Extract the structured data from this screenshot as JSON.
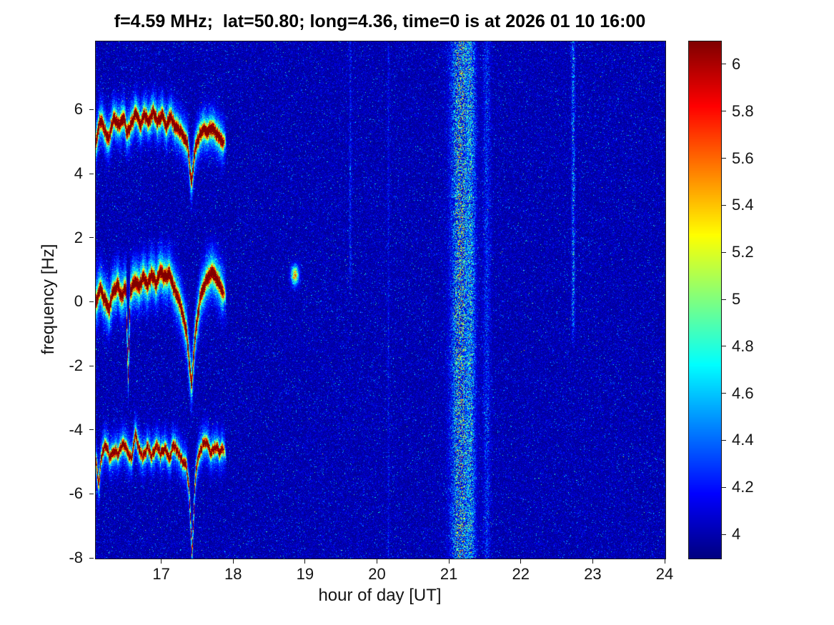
{
  "title": "f=4.59 MHz;  lat=50.80; long=4.36, time=0 is at 2026 01 10 16:00",
  "chart_data": {
    "type": "heatmap",
    "title": "f=4.59 MHz;  lat=50.80; long=4.36, time=0 is at 2026 01 10 16:00",
    "xlabel": "hour of day [UT]",
    "ylabel": "frequency [Hz]",
    "colormap": "jet",
    "grid": false,
    "x_range": [
      16.08,
      24
    ],
    "y_range": [
      -8,
      8.15
    ],
    "color_range": [
      3.9,
      6.1
    ],
    "x_ticks": [
      17,
      18,
      19,
      20,
      21,
      22,
      23,
      24
    ],
    "y_ticks": [
      -8,
      -6,
      -4,
      -2,
      0,
      2,
      4,
      6
    ],
    "colorbar_ticks": [
      {
        "value": 4,
        "label": "4"
      },
      {
        "value": 4.2,
        "label": "4.2"
      },
      {
        "value": 4.4,
        "label": "4.4"
      },
      {
        "value": 4.6,
        "label": "4.6"
      },
      {
        "value": 4.8,
        "label": "4.8"
      },
      {
        "value": 5,
        "label": "5"
      },
      {
        "value": 5.2,
        "label": "5.2"
      },
      {
        "value": 5.4,
        "label": "5.4"
      },
      {
        "value": 5.6,
        "label": "5.6"
      },
      {
        "value": 5.8,
        "label": "5.8"
      },
      {
        "value": 6,
        "label": "6"
      }
    ],
    "background_noise": {
      "base": 3.93,
      "exp_scale": 0.09,
      "speckle_prob": 0.02,
      "speckle_max": 0.9
    },
    "doppler_traces": [
      {
        "name": "upper-trace",
        "amp": 2.3,
        "core_sigma": 0.13,
        "halo_amp": 0.75,
        "halo_sigma": 0.42,
        "points": [
          [
            16.08,
            5.0
          ],
          [
            16.14,
            5.7
          ],
          [
            16.2,
            5.4
          ],
          [
            16.26,
            5.1
          ],
          [
            16.33,
            5.8
          ],
          [
            16.4,
            5.5
          ],
          [
            16.46,
            5.8
          ],
          [
            16.52,
            5.3
          ],
          [
            16.58,
            5.6
          ],
          [
            16.64,
            5.9
          ],
          [
            16.7,
            5.5
          ],
          [
            16.76,
            5.9
          ],
          [
            16.82,
            5.6
          ],
          [
            16.88,
            6.0
          ],
          [
            16.94,
            5.6
          ],
          [
            17.0,
            5.9
          ],
          [
            17.06,
            5.5
          ],
          [
            17.12,
            5.8
          ],
          [
            17.18,
            5.5
          ],
          [
            17.24,
            5.4
          ],
          [
            17.3,
            5.2
          ],
          [
            17.36,
            4.9
          ],
          [
            17.41,
            3.7
          ],
          [
            17.46,
            4.8
          ],
          [
            17.52,
            5.2
          ],
          [
            17.58,
            5.45
          ],
          [
            17.64,
            5.35
          ],
          [
            17.7,
            5.45
          ],
          [
            17.76,
            5.25
          ],
          [
            17.82,
            5.1
          ],
          [
            17.9,
            4.95
          ]
        ]
      },
      {
        "name": "center-trace",
        "amp": 2.3,
        "core_sigma": 0.14,
        "halo_amp": 0.8,
        "halo_sigma": 0.5,
        "points": [
          [
            16.08,
            0.0
          ],
          [
            16.14,
            0.45
          ],
          [
            16.2,
            0.1
          ],
          [
            16.26,
            -0.25
          ],
          [
            16.32,
            0.3
          ],
          [
            16.38,
            0.55
          ],
          [
            16.44,
            0.2
          ],
          [
            16.5,
            0.5
          ],
          [
            16.53,
            -2.3
          ],
          [
            16.56,
            0.3
          ],
          [
            16.62,
            0.7
          ],
          [
            16.68,
            0.45
          ],
          [
            16.74,
            0.8
          ],
          [
            16.8,
            0.5
          ],
          [
            16.86,
            0.9
          ],
          [
            16.92,
            0.6
          ],
          [
            16.98,
            1.0
          ],
          [
            17.04,
            0.75
          ],
          [
            17.1,
            0.9
          ],
          [
            17.16,
            0.5
          ],
          [
            17.22,
            0.2
          ],
          [
            17.28,
            -0.3
          ],
          [
            17.34,
            -0.9
          ],
          [
            17.41,
            -2.6
          ],
          [
            17.47,
            -0.9
          ],
          [
            17.53,
            0.1
          ],
          [
            17.59,
            0.55
          ],
          [
            17.65,
            0.8
          ],
          [
            17.71,
            0.95
          ],
          [
            17.77,
            0.7
          ],
          [
            17.83,
            0.45
          ],
          [
            17.9,
            0.15
          ]
        ]
      },
      {
        "name": "lower-trace",
        "amp": 2.15,
        "core_sigma": 0.11,
        "halo_amp": 0.6,
        "halo_sigma": 0.38,
        "points": [
          [
            16.08,
            -4.9
          ],
          [
            16.12,
            -5.7
          ],
          [
            16.16,
            -4.8
          ],
          [
            16.22,
            -4.4
          ],
          [
            16.28,
            -4.85
          ],
          [
            16.34,
            -4.6
          ],
          [
            16.4,
            -4.75
          ],
          [
            16.46,
            -4.35
          ],
          [
            16.52,
            -4.7
          ],
          [
            16.58,
            -4.9
          ],
          [
            16.63,
            -4.15
          ],
          [
            16.68,
            -4.55
          ],
          [
            16.74,
            -4.85
          ],
          [
            16.8,
            -4.5
          ],
          [
            16.86,
            -4.8
          ],
          [
            16.92,
            -4.45
          ],
          [
            16.98,
            -4.75
          ],
          [
            17.04,
            -4.55
          ],
          [
            17.1,
            -4.9
          ],
          [
            17.16,
            -4.45
          ],
          [
            17.22,
            -4.65
          ],
          [
            17.28,
            -4.95
          ],
          [
            17.34,
            -5.1
          ],
          [
            17.38,
            -5.9
          ],
          [
            17.42,
            -7.95
          ],
          [
            17.46,
            -5.6
          ],
          [
            17.5,
            -4.9
          ],
          [
            17.56,
            -4.5
          ],
          [
            17.62,
            -4.35
          ],
          [
            17.68,
            -4.7
          ],
          [
            17.74,
            -4.5
          ],
          [
            17.8,
            -4.65
          ],
          [
            17.86,
            -4.6
          ],
          [
            17.9,
            -4.8
          ]
        ]
      }
    ],
    "vertical_events": [
      {
        "t": 21.15,
        "sigma": 0.085,
        "amp": 1.6
      },
      {
        "t": 21.3,
        "sigma": 0.045,
        "amp": 1.1
      },
      {
        "t": 21.52,
        "sigma": 0.035,
        "amp": 0.55
      },
      {
        "t": 22.72,
        "sigma": 0.016,
        "amp": 1.05,
        "fmin": -1.5
      },
      {
        "t": 19.62,
        "sigma": 0.012,
        "amp": 0.5,
        "fmin": 0
      },
      {
        "t": 20.15,
        "sigma": 0.01,
        "amp": 0.35
      }
    ],
    "blobs": [
      {
        "t": 18.85,
        "f": 0.85,
        "amp": 1.4,
        "t_sigma": 0.035,
        "f_sigma": 0.2
      }
    ]
  }
}
